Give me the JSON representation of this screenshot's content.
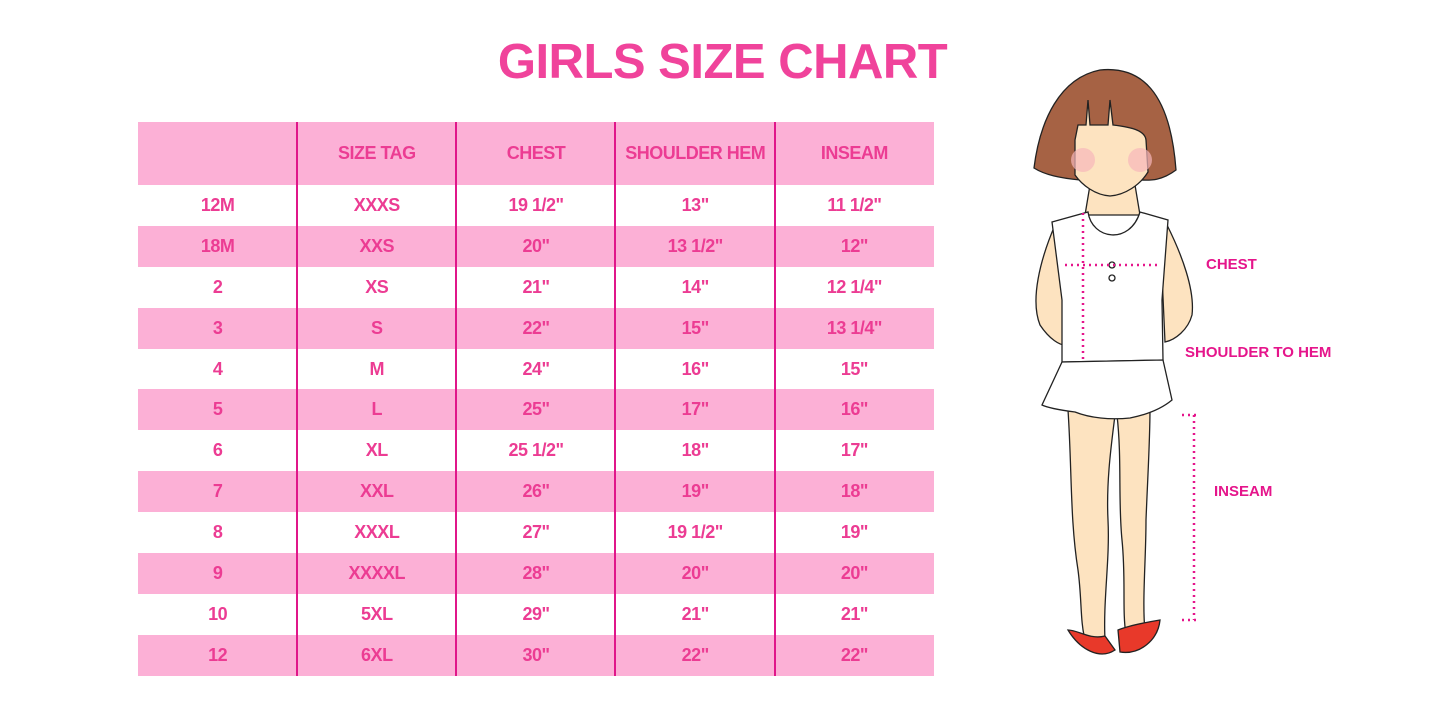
{
  "title": "GIRLS SIZE CHART",
  "table": {
    "headers": [
      "",
      "SIZE TAG",
      "CHEST",
      "SHOULDER HEM",
      "INSEAM"
    ],
    "rows": [
      [
        "12M",
        "XXXS",
        "19 1/2\"",
        "13\"",
        "11 1/2\""
      ],
      [
        "18M",
        "XXS",
        "20\"",
        "13 1/2\"",
        "12\""
      ],
      [
        "2",
        "XS",
        "21\"",
        "14\"",
        "12 1/4\""
      ],
      [
        "3",
        "S",
        "22\"",
        "15\"",
        "13 1/4\""
      ],
      [
        "4",
        "M",
        "24\"",
        "16\"",
        "15\""
      ],
      [
        "5",
        "L",
        "25\"",
        "17\"",
        "16\""
      ],
      [
        "6",
        "XL",
        "25 1/2\"",
        "18\"",
        "17\""
      ],
      [
        "7",
        "XXL",
        "26\"",
        "19\"",
        "18\""
      ],
      [
        "8",
        "XXXL",
        "27\"",
        "19 1/2\"",
        "19\""
      ],
      [
        "9",
        "XXXXL",
        "28\"",
        "20\"",
        "20\""
      ],
      [
        "10",
        "5XL",
        "29\"",
        "21\"",
        "21\""
      ],
      [
        "12",
        "6XL",
        "30\"",
        "22\"",
        "22\""
      ]
    ]
  },
  "figure": {
    "labels": {
      "chest": "CHEST",
      "shoulder": "SHOULDER TO HEM",
      "inseam": "INSEAM"
    }
  },
  "colors": {
    "accent": "#ec3c93",
    "stripe": "#fcb0d6",
    "divider": "#e0168a"
  }
}
